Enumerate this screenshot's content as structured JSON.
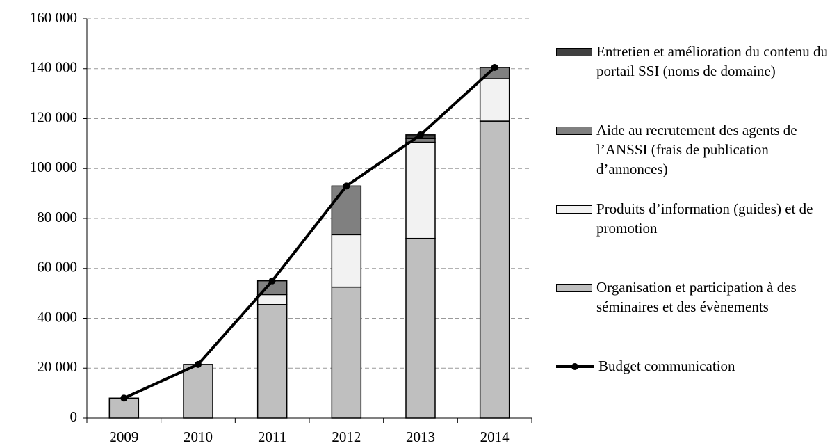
{
  "chart_data": {
    "type": "bar",
    "stacked": true,
    "categories": [
      "2009",
      "2010",
      "2011",
      "2012",
      "2013",
      "2014"
    ],
    "series": [
      {
        "name": "Organisation et participation à des séminaires et des évènements",
        "color": "#bfbfbf",
        "values": [
          8000,
          21500,
          45500,
          52500,
          72000,
          119000
        ]
      },
      {
        "name": "Produits d’information (guides) et de promotion",
        "color": "#f2f2f2",
        "values": [
          null,
          null,
          4000,
          21000,
          38500,
          17000
        ]
      },
      {
        "name": "Aide au recrutement des agents de l’ANSSI (frais de publication d’annonces)",
        "color": "#808080",
        "values": [
          null,
          null,
          5500,
          19500,
          1500,
          4500
        ]
      },
      {
        "name": "Entretien et amélioration du contenu du portail SSI (noms de domaine)",
        "color": "#404040",
        "values": [
          null,
          null,
          null,
          null,
          1500,
          null
        ]
      }
    ],
    "line": {
      "name": "Budget communication",
      "color": "#000000",
      "values": [
        8000,
        21500,
        55000,
        93000,
        113500,
        140500
      ]
    },
    "ylim": [
      0,
      160000
    ],
    "yticks": [
      0,
      {
        "value": 20000,
        "label": "20 000"
      },
      {
        "value": 40000,
        "label": "40 000"
      },
      {
        "value": 60000,
        "label": "60 000"
      },
      {
        "value": 80000,
        "label": "80 000"
      },
      {
        "value": 100000,
        "label": "100 000"
      },
      {
        "value": 120000,
        "label": "120 000"
      },
      {
        "value": 140000,
        "label": "140 000"
      },
      {
        "value": 160000,
        "label": "160 000"
      }
    ],
    "grid": true
  }
}
